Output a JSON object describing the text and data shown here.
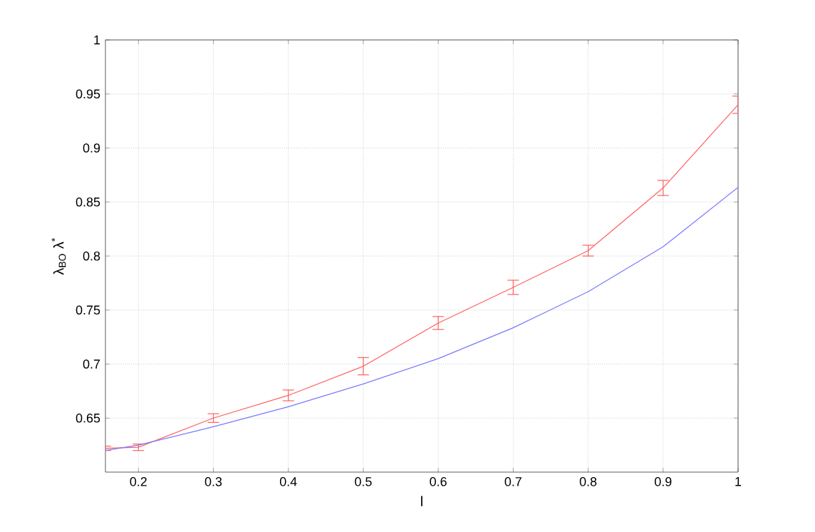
{
  "chart_data": {
    "type": "line",
    "xlabel": "l",
    "ylabel": "λ$_{BO}$   λ$^{*}$",
    "xlim": [
      0.156,
      1
    ],
    "ylim": [
      0.6,
      1
    ],
    "xticks": [
      0.2,
      0.3,
      0.4,
      0.5,
      0.6,
      0.7,
      0.8,
      0.9,
      1
    ],
    "yticks": [
      0.65,
      0.7,
      0.75,
      0.8,
      0.85,
      0.9,
      0.95,
      1
    ],
    "grid": true,
    "marker": "none",
    "line_style": "solid",
    "x": [
      0.156,
      0.2,
      0.3,
      0.4,
      0.5,
      0.6,
      0.7,
      0.8,
      0.9,
      1
    ],
    "series": [
      {
        "color": "#ff5f5f",
        "values": [
          0.622,
          0.623,
          0.65,
          0.671,
          0.698,
          0.738,
          0.771,
          0.805,
          0.863,
          0.94
        ],
        "errors": [
          0.002,
          0.003,
          0.004,
          0.005,
          0.008,
          0.006,
          0.0066,
          0.005,
          0.007,
          0.008
        ]
      },
      {
        "color": "#7878ff",
        "values": [
          0.62,
          0.625,
          0.642,
          0.6605,
          0.6816,
          0.705,
          0.7336,
          0.767,
          0.8086,
          0.8636
        ]
      }
    ]
  }
}
